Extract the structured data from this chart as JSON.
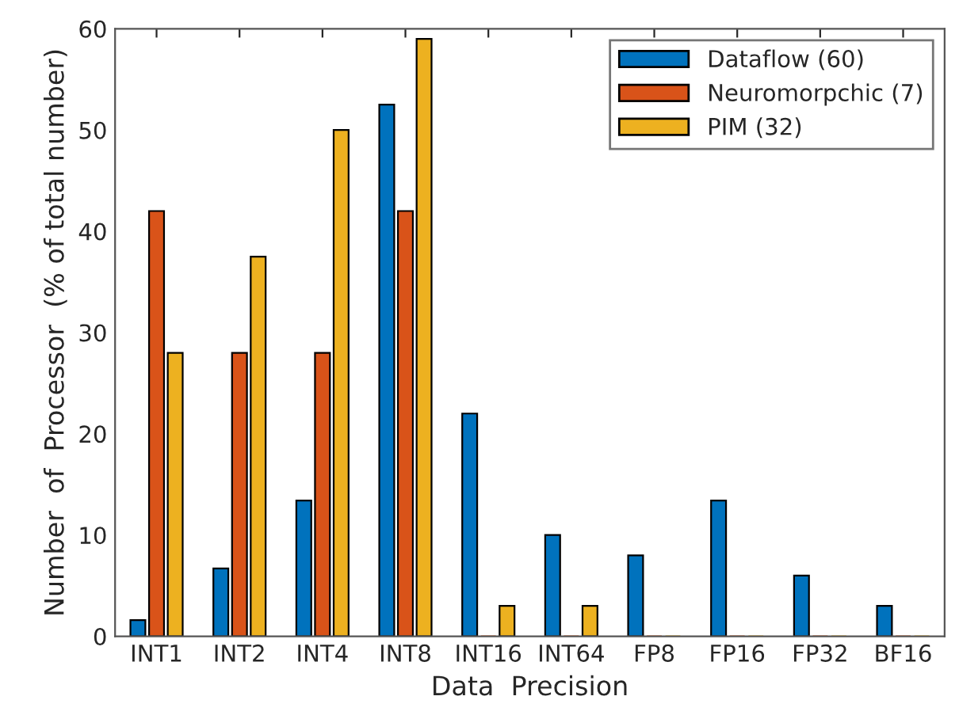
{
  "chart_data": {
    "type": "bar",
    "xlabel": "Data  Precision",
    "ylabel": "Number  of  Processor  (% of total number)",
    "categories": [
      "INT1",
      "INT2",
      "INT4",
      "INT8",
      "INT16",
      "INT64",
      "FP8",
      "FP16",
      "FP32",
      "BF16"
    ],
    "series": [
      {
        "name": "Dataflow (60)",
        "color": "#0072bd",
        "values": [
          1.6,
          6.7,
          13.4,
          52.5,
          22,
          10,
          8,
          13.4,
          6,
          3
        ]
      },
      {
        "name": "Neuromorpchic (7)",
        "color": "#d95319",
        "values": [
          42,
          28,
          28,
          42,
          0,
          0,
          0,
          0,
          0,
          0
        ]
      },
      {
        "name": "PIM (32)",
        "color": "#edb120",
        "values": [
          28,
          37.5,
          50,
          59,
          3,
          3,
          0,
          0,
          0,
          0
        ]
      }
    ],
    "ylim": [
      0,
      60
    ],
    "yticks": [
      0,
      10,
      20,
      30,
      40,
      50,
      60
    ],
    "grid": false,
    "legend": "top right"
  }
}
